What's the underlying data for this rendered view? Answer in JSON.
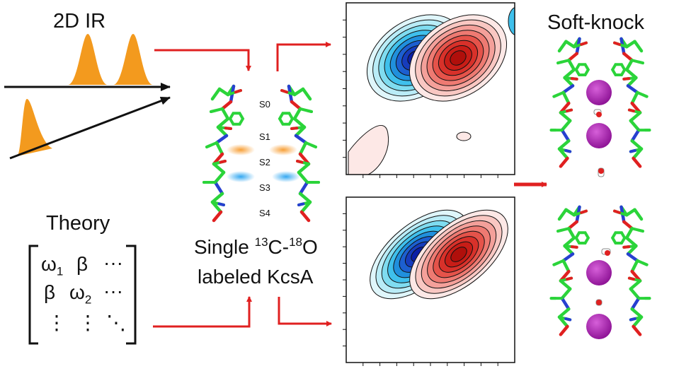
{
  "labels": {
    "ir_title": "2D IR",
    "soft_knock": "Soft-knock",
    "theory": "Theory",
    "single_prefix": "Single ",
    "iso1": "13",
    "iso_mid": "C-",
    "iso2": "18",
    "iso_end": "O",
    "labeled": "labeled KcsA"
  },
  "sites": [
    "S0",
    "S1",
    "S2",
    "S3",
    "S4"
  ],
  "matrix": {
    "omega": "ω",
    "sub1": "1",
    "sub2": "2",
    "beta": "β",
    "dots_h": "···",
    "dots_v": "⋮",
    "dots_d": "⋱"
  },
  "colors": {
    "arrow": "#e02020",
    "pulse": "#f39a1e",
    "carbon": "#2bd43a",
    "oxygen": "#e02020",
    "nitrogen": "#2740d0",
    "ion": "#a01aa8",
    "blue_peak": "#0b1fa6",
    "red_peak": "#c01010",
    "highlight_orange": "#f79a2c",
    "highlight_blue": "#2aa4f0"
  }
}
